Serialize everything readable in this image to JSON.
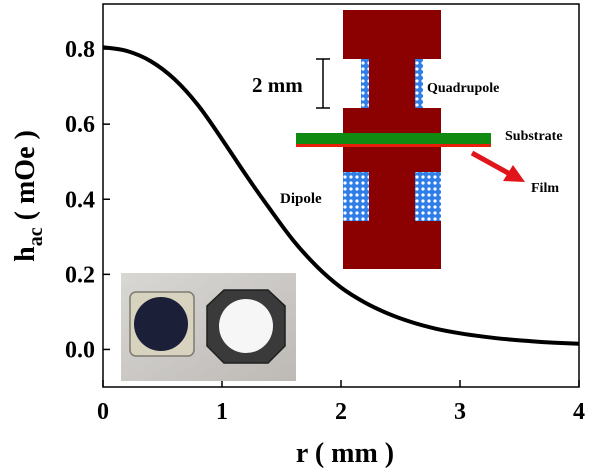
{
  "chart_data": {
    "type": "line",
    "xlabel": "r ( mm )",
    "ylabel_main": "h",
    "ylabel_sub": "ac",
    "ylabel_rest": " ( mOe )",
    "xlim": [
      0,
      4
    ],
    "ylim": [
      -0.1,
      0.92
    ],
    "x_ticks": [
      0,
      1,
      2,
      3,
      4
    ],
    "x_tick_labels": [
      "0",
      "1",
      "2",
      "3",
      "4"
    ],
    "y_ticks": [
      0.0,
      0.2,
      0.4,
      0.6,
      0.8
    ],
    "y_tick_labels": [
      "0.0",
      "0.2",
      "0.4",
      "0.6",
      "0.8"
    ],
    "grid": false,
    "series": [
      {
        "color": "#000000",
        "x": [
          0,
          0.2,
          0.4,
          0.6,
          0.8,
          1.0,
          1.2,
          1.4,
          1.6,
          1.8,
          2.0,
          2.2,
          2.4,
          2.6,
          2.8,
          3.0,
          3.2,
          3.4,
          3.6,
          3.8,
          4.0
        ],
        "y": [
          0.805,
          0.795,
          0.768,
          0.72,
          0.65,
          0.56,
          0.465,
          0.375,
          0.29,
          0.22,
          0.165,
          0.125,
          0.095,
          0.072,
          0.055,
          0.043,
          0.034,
          0.027,
          0.022,
          0.018,
          0.015
        ]
      }
    ],
    "annotations": {
      "gap": "2 mm",
      "quadrupole": "Quadrupole",
      "substrate": "Substrate",
      "dipole": "Dipole",
      "film": "Film"
    },
    "colors": {
      "magnet": "#8b0000",
      "substrate": "#108a10",
      "film": "#e8200a",
      "coil": "#3a8ef0",
      "arrow": "#e0141a"
    }
  }
}
